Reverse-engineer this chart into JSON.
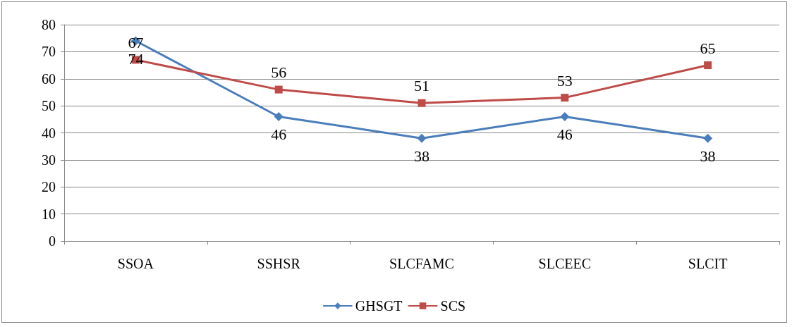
{
  "chart_data": {
    "type": "line",
    "categories": [
      "SSOA",
      "SSHSR",
      "SLCFAMC",
      "SLCEEC",
      "SLCIT"
    ],
    "series": [
      {
        "name": "GHSGT",
        "color": "#4a7ebb",
        "marker": "diamond",
        "values": [
          74,
          46,
          38,
          46,
          38
        ]
      },
      {
        "name": "SCS",
        "color": "#be4b48",
        "marker": "square",
        "values": [
          67,
          56,
          51,
          53,
          65
        ]
      }
    ],
    "ylim": [
      0,
      80
    ],
    "yticks": [
      0,
      10,
      20,
      30,
      40,
      50,
      60,
      70,
      80
    ],
    "grid": "y",
    "legend": "bottom",
    "data_labels": true,
    "line_style": "solid"
  }
}
